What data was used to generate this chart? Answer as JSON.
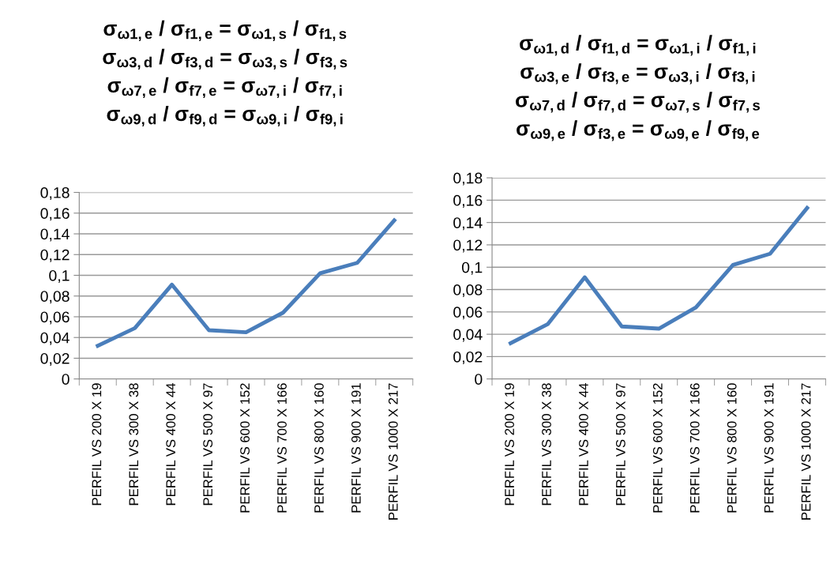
{
  "chart_data": [
    {
      "type": "line",
      "title": "σ$_{ω1,e}$ / σ$_{f1,e}$ = σ$_{ω1,s}$ / σ$_{f1,s}$\nσ$_{ω3,d}$ / σ$_{f3,d}$ = σ$_{ω3,s}$ / σ$_{f3,s}$\nσ$_{ω7,e}$ / σ$_{f7,e}$ = σ$_{ω7,i}$ / σ$_{f7,i}$\nσ$_{ω9,d}$ / σ$_{f9,d}$ = σ$_{ω9,i}$ / σ$_{f9,i}$",
      "categories": [
        "PERFIL VS 200 X 19",
        "PERFIL VS 300 X 38",
        "PERFIL VS 400 X 44",
        "PERFIL VS 500 X 97",
        "PERFIL VS 600 X 152",
        "PERFIL VS 700 X 166",
        "PERFIL VS 800 X 160",
        "PERFIL VS 900 X 191",
        "PERFIL VS 1000 X 217"
      ],
      "values": [
        0.032,
        0.049,
        0.091,
        0.047,
        0.045,
        0.064,
        0.102,
        0.112,
        0.153
      ],
      "color": "#4a7ebb",
      "ylim": [
        0,
        0.18
      ],
      "yticks": [
        {
          "value": 0,
          "label": "0"
        },
        {
          "value": 0.02,
          "label": "0,02"
        },
        {
          "value": 0.04,
          "label": "0,04"
        },
        {
          "value": 0.06,
          "label": "0,06"
        },
        {
          "value": 0.08,
          "label": "0,08"
        },
        {
          "value": 0.1,
          "label": "0,1"
        },
        {
          "value": 0.12,
          "label": "0,12"
        },
        {
          "value": 0.14,
          "label": "0,14"
        },
        {
          "value": 0.16,
          "label": "0,16"
        },
        {
          "value": 0.18,
          "label": "0,18"
        }
      ],
      "grid": "y",
      "marker": "none",
      "line_style": "solid"
    },
    {
      "type": "line",
      "title": "σ$_{ω1,d}$ / σ$_{f1,d}$ = σ$_{ω1,i}$ / σ$_{f1,i}$\nσ$_{ω3,e}$ / σ$_{f3,e}$ = σ$_{ω3,i}$ / σ$_{f3,i}$\nσ$_{ω7,d}$ / σ$_{f7,d}$ = σ$_{ω7,s}$ / σ$_{f7,s}$\nσ$_{ω9,e}$ / σ$_{f3,e}$ = σ$_{ω9,e}$ / σ$_{f9,e}$",
      "categories": [
        "PERFIL VS 200 X 19",
        "PERFIL VS 300 X 38",
        "PERFIL VS 400 X 44",
        "PERFIL VS 500 X 97",
        "PERFIL VS 600 X 152",
        "PERFIL VS 700 X 166",
        "PERFIL VS 800 X 160",
        "PERFIL VS 900 X 191",
        "PERFIL VS 1000 X 217"
      ],
      "values": [
        0.032,
        0.049,
        0.091,
        0.047,
        0.045,
        0.064,
        0.102,
        0.112,
        0.153
      ],
      "color": "#4a7ebb",
      "ylim": [
        0,
        0.18
      ],
      "yticks": [
        {
          "value": 0,
          "label": "0"
        },
        {
          "value": 0.02,
          "label": "0,02"
        },
        {
          "value": 0.04,
          "label": "0,04"
        },
        {
          "value": 0.06,
          "label": "0,06"
        },
        {
          "value": 0.08,
          "label": "0,08"
        },
        {
          "value": 0.1,
          "label": "0,1"
        },
        {
          "value": 0.12,
          "label": "0,12"
        },
        {
          "value": 0.14,
          "label": "0,14"
        },
        {
          "value": 0.16,
          "label": "0,16"
        },
        {
          "value": 0.18,
          "label": "0,18"
        }
      ],
      "grid": "y",
      "marker": "none",
      "line_style": "solid"
    }
  ]
}
